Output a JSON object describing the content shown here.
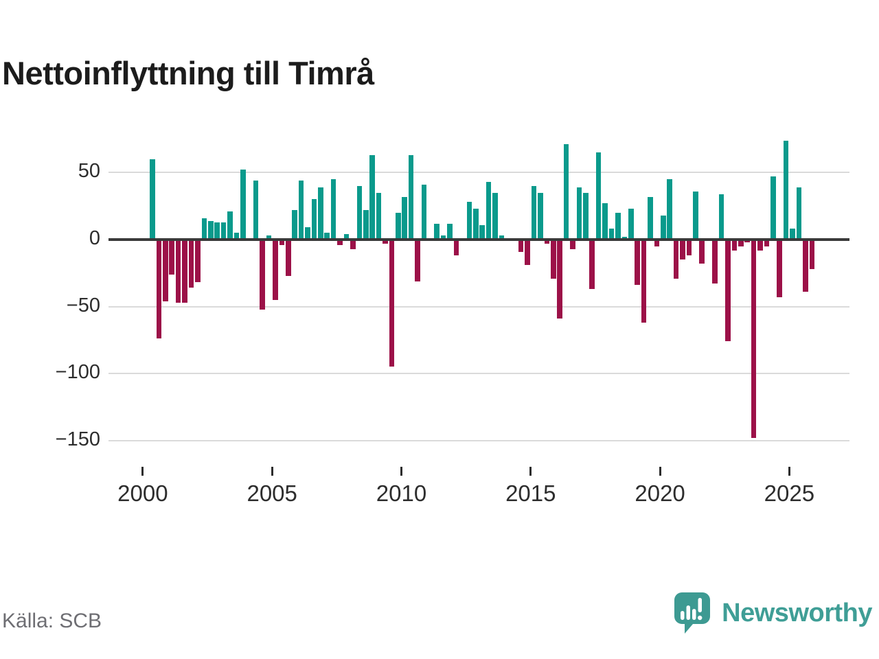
{
  "header": {
    "title": "Nettoinflyttning till Timrå"
  },
  "footer": {
    "source": "Källa: SCB",
    "brand": "Newsworthy"
  },
  "chart_data": {
    "type": "bar",
    "title": "Nettoinflyttning till Timrå",
    "frequency": "quarterly",
    "start_year": 2000,
    "x_tick_labels": [
      "2000",
      "2005",
      "2010",
      "2015",
      "2020",
      "2025"
    ],
    "y_ticks": [
      50,
      0,
      -50,
      -100,
      -150
    ],
    "y_tick_labels": [
      "50",
      "0",
      "−50",
      "−100",
      "−150"
    ],
    "ylim": [
      -160,
      82
    ],
    "grid": true,
    "legend": false,
    "colors": {
      "positive": "#0a9a8c",
      "negative": "#9c1148",
      "zero_line": "#3a3a3a",
      "grid": "#dadada",
      "brand": "#3f9e96",
      "text": "#2d2d2d",
      "muted": "#6e6e73"
    },
    "values": [
      0,
      60,
      -74,
      -46,
      -26,
      -47,
      -47,
      -36,
      -32,
      16,
      14,
      13,
      13,
      21,
      5,
      52,
      0,
      44,
      -52,
      3,
      -45,
      -4,
      -27,
      22,
      44,
      9,
      30,
      39,
      5,
      45,
      -4,
      4,
      -7,
      40,
      22,
      63,
      35,
      -3,
      -95,
      20,
      32,
      63,
      -31,
      41,
      0,
      12,
      3,
      12,
      -12,
      0,
      28,
      23,
      11,
      43,
      35,
      3,
      0,
      0,
      -9,
      -19,
      40,
      35,
      -3,
      -29,
      -59,
      71,
      -7,
      39,
      35,
      -37,
      65,
      27,
      8,
      20,
      2,
      23,
      -34,
      -62,
      32,
      -5,
      18,
      45,
      -29,
      -15,
      -12,
      36,
      -18,
      0,
      -33,
      34,
      -76,
      -8,
      -5,
      -2,
      -148,
      -8,
      -5,
      47,
      -43,
      74,
      8,
      39,
      -39,
      -22
    ]
  }
}
